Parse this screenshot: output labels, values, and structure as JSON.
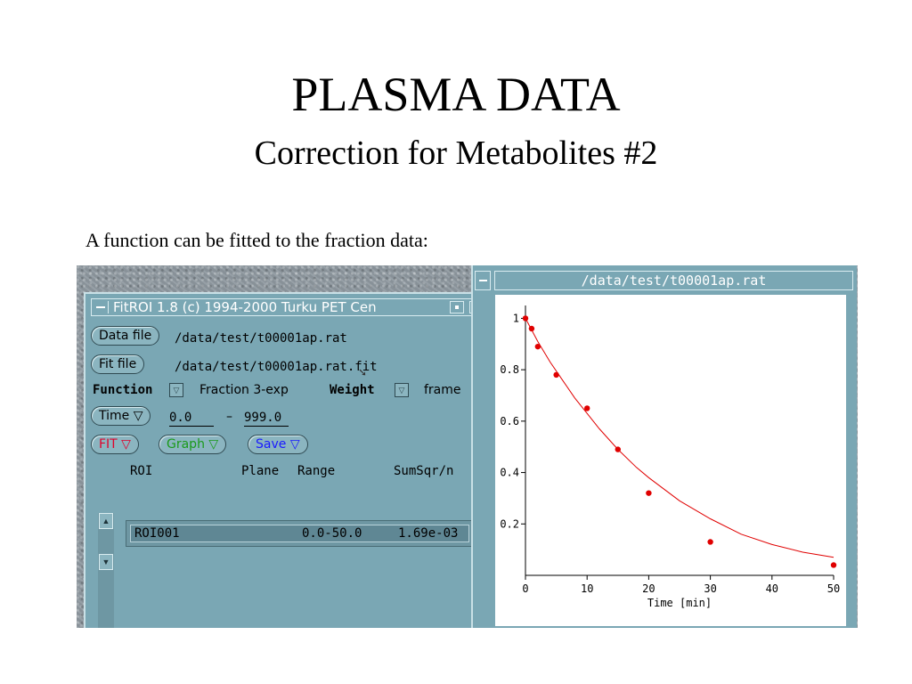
{
  "slide": {
    "title": "PLASMA DATA",
    "subtitle": "Correction for Metabolites #2",
    "caption": "A function can be fitted to the fraction data:"
  },
  "fitroi": {
    "window_title": "FitROI 1.8  (c) 1994-2000 Turku PET Cen",
    "data_file_button": "Data file",
    "data_file_value": "/data/test/t00001ap.rat",
    "fit_file_button": "Fit file",
    "fit_file_value": "/data/test/t00001ap.rat.fit",
    "function_label": "Function",
    "function_value": "Fraction 3-exp",
    "weight_label": "Weight",
    "weight_value": "frame",
    "time_button": "Time ▽",
    "time_start": "0.0",
    "time_dash": "–",
    "time_end": "999.0",
    "fit_button": "FIT ▽",
    "graph_button": "Graph ▽",
    "save_button": "Save ▽",
    "columns": [
      "ROI",
      "Plane",
      "Range",
      "SumSqr/n"
    ],
    "rows": [
      {
        "roi": "ROI001",
        "plane": "",
        "range": "0.0-50.0",
        "sumsqr": "1.69e-03"
      }
    ],
    "colors": {
      "fit": "#e0002a",
      "graph": "#1a9a1a",
      "save": "#1a1aff"
    }
  },
  "plot_window": {
    "title": "/data/test/t00001ap.rat"
  },
  "chart_data": {
    "type": "scatter",
    "xlabel": "Time [min]",
    "ylabel": "",
    "xlim": [
      0,
      50
    ],
    "ylim": [
      0,
      1.05
    ],
    "xticks": [
      0,
      10,
      20,
      30,
      40,
      50
    ],
    "yticks": [
      0.2,
      0.4,
      0.6,
      0.8,
      1
    ],
    "ytick_labels": [
      "0.2",
      "0.4",
      "0.6",
      "0.8",
      "1"
    ],
    "points": {
      "x": [
        0,
        1,
        2,
        5,
        10,
        15,
        20,
        30,
        50
      ],
      "y": [
        1.0,
        0.96,
        0.89,
        0.78,
        0.65,
        0.49,
        0.32,
        0.13,
        0.04
      ]
    },
    "fit_curve": {
      "x": [
        0,
        2,
        4,
        6,
        8,
        10,
        12,
        15,
        18,
        20,
        25,
        30,
        35,
        40,
        45,
        50
      ],
      "y": [
        1.0,
        0.91,
        0.83,
        0.76,
        0.69,
        0.63,
        0.57,
        0.49,
        0.42,
        0.38,
        0.29,
        0.22,
        0.16,
        0.12,
        0.09,
        0.07
      ]
    },
    "grid": false,
    "colors": {
      "points": "#e00000",
      "curve": "#e00000"
    }
  }
}
